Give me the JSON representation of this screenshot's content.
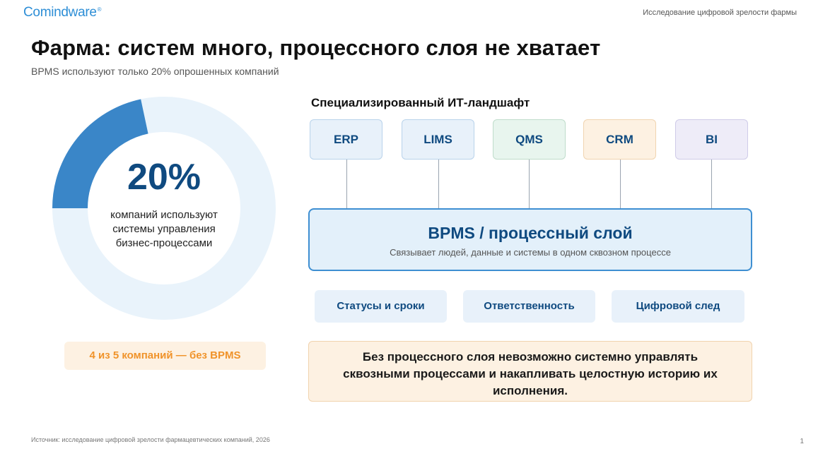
{
  "header": {
    "logo_text": "Comindware",
    "logo_mark": "®",
    "report_title": "Исследование цифровой зрелости фармы"
  },
  "slide": {
    "title": "Фарма: систем много, процессного слоя не хватает",
    "subtitle": "BPMS используют только 20% опрошенных компаний"
  },
  "donut": {
    "value_label": "20%",
    "share": 0.2,
    "description": "компаний используют системы управления бизнес-процессами",
    "filled_color": "#3a86c8",
    "track_color": "#e9f3fb"
  },
  "badge": {
    "label": "4 из 5 компаний — без BPMS"
  },
  "landscape": {
    "title": "Специализированный ИТ-ландшафт",
    "systems": [
      "ERP",
      "LIMS",
      "QMS",
      "CRM",
      "BI"
    ]
  },
  "bpms": {
    "title": "BPMS / процессный слой",
    "subtitle": "Связывает людей, данные и системы в одном сквозном процессе"
  },
  "features": [
    "Статусы и сроки",
    "Ответственность",
    "Цифровой след"
  ],
  "callout": {
    "text": "Без процессного слоя невозможно системно управлять сквозными процессами и накапливать целостную историю их исполнения."
  },
  "footer": {
    "source": "Источник: исследование цифровой зрелости фармацевтических компаний, 2026",
    "page": "1"
  }
}
